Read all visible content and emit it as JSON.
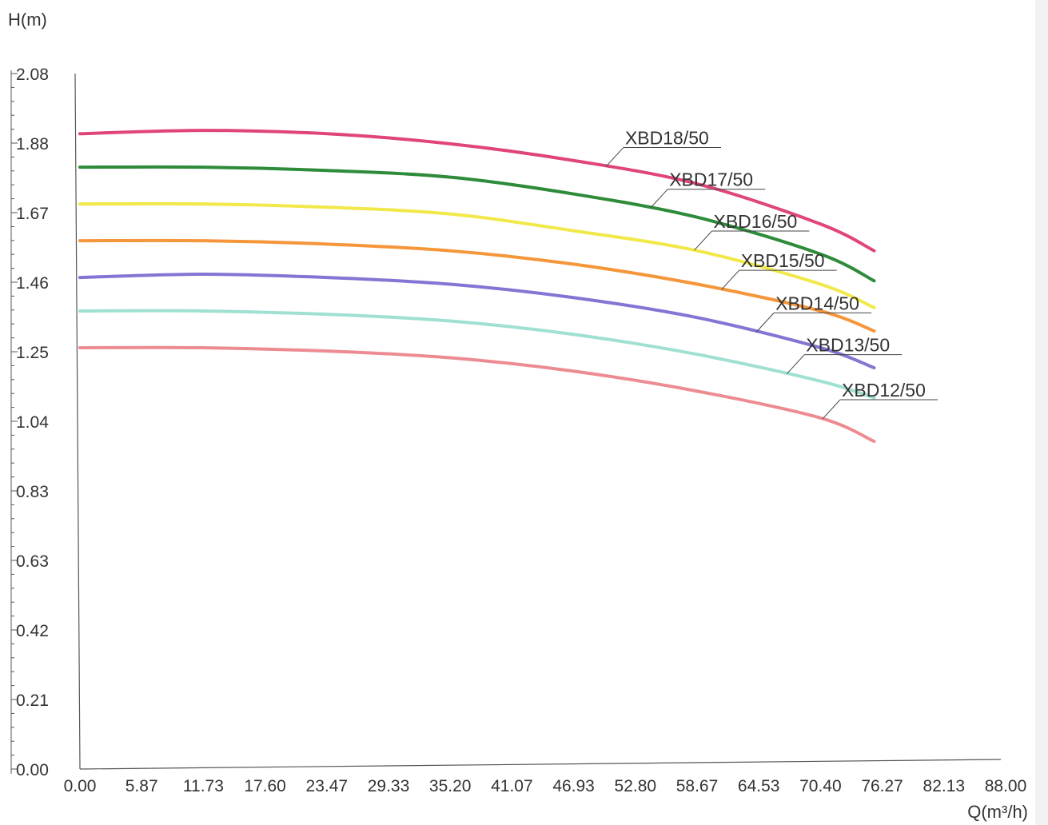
{
  "chart_data": {
    "type": "line",
    "ylabel": "H(m)",
    "xlabel": "Q(m³/h)",
    "ylim": [
      0,
      2.08
    ],
    "xlim": [
      0,
      88
    ],
    "y_ticks": [
      "0.00",
      "0.21",
      "0.42",
      "0.63",
      "0.83",
      "1.04",
      "1.25",
      "1.46",
      "1.67",
      "1.88",
      "2.08"
    ],
    "x_ticks": [
      "0.00",
      "5.87",
      "11.73",
      "17.60",
      "23.47",
      "29.33",
      "35.20",
      "41.07",
      "46.93",
      "52.80",
      "58.67",
      "64.53",
      "70.40",
      "76.27",
      "82.13",
      "88.00"
    ],
    "grid": false,
    "legend": "inline labels at right end of curves",
    "series": [
      {
        "name": "XBD18/50",
        "color": "#e0457a",
        "x": [
          0,
          11.7,
          23.5,
          35.2,
          46.9,
          58.7,
          70.4,
          75.5
        ],
        "y": [
          1.9,
          1.91,
          1.9,
          1.87,
          1.82,
          1.75,
          1.63,
          1.55
        ],
        "label_anchor_x": 50.0
      },
      {
        "name": "XBD17/50",
        "color": "#2e8b3a",
        "x": [
          0,
          11.7,
          23.5,
          35.2,
          46.9,
          58.7,
          70.4,
          75.5
        ],
        "y": [
          1.8,
          1.8,
          1.79,
          1.77,
          1.72,
          1.65,
          1.54,
          1.46
        ],
        "label_anchor_x": 54.2
      },
      {
        "name": "XBD16/50",
        "color": "#f1e84a",
        "x": [
          0,
          11.7,
          23.5,
          35.2,
          46.9,
          58.7,
          70.4,
          75.5
        ],
        "y": [
          1.69,
          1.69,
          1.68,
          1.66,
          1.61,
          1.55,
          1.45,
          1.38
        ],
        "label_anchor_x": 58.4
      },
      {
        "name": "XBD15/50",
        "color": "#f5963a",
        "x": [
          0,
          11.7,
          23.5,
          35.2,
          46.9,
          58.7,
          70.4,
          75.5
        ],
        "y": [
          1.58,
          1.58,
          1.57,
          1.55,
          1.51,
          1.45,
          1.37,
          1.31
        ],
        "label_anchor_x": 61.0
      },
      {
        "name": "XBD14/50",
        "color": "#8474d4",
        "x": [
          0,
          11.7,
          23.5,
          35.2,
          46.9,
          58.7,
          70.4,
          75.5
        ],
        "y": [
          1.47,
          1.48,
          1.47,
          1.45,
          1.41,
          1.35,
          1.26,
          1.2
        ],
        "label_anchor_x": 64.3
      },
      {
        "name": "XBD13/50",
        "color": "#9fe0d2",
        "x": [
          0,
          11.7,
          23.5,
          35.2,
          46.9,
          58.7,
          70.4,
          75.5
        ],
        "y": [
          1.37,
          1.37,
          1.36,
          1.34,
          1.3,
          1.24,
          1.16,
          1.11
        ],
        "label_anchor_x": 67.2
      },
      {
        "name": "XBD12/50",
        "color": "#ec8c92",
        "x": [
          0,
          11.7,
          23.5,
          35.2,
          46.9,
          58.7,
          70.4,
          75.5
        ],
        "y": [
          1.26,
          1.26,
          1.25,
          1.23,
          1.19,
          1.13,
          1.05,
          0.98
        ],
        "label_anchor_x": 70.6
      }
    ]
  }
}
